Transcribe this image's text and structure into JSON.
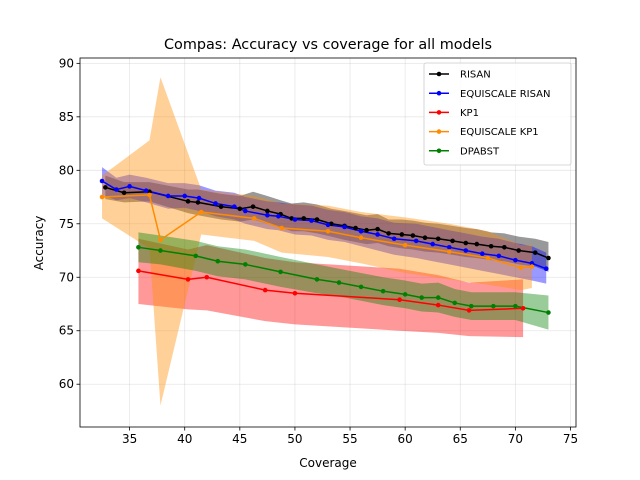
{
  "chart_data": {
    "type": "line",
    "title": "Compas: Accuracy vs coverage for all models",
    "xlabel": "Coverage",
    "ylabel": "Accuracy",
    "xlim": [
      30.5,
      75.5
    ],
    "ylim": [
      56.0,
      90.5
    ],
    "xticks": [
      35,
      40,
      45,
      50,
      55,
      60,
      65,
      70,
      75
    ],
    "yticks": [
      60,
      65,
      70,
      75,
      80,
      85,
      90
    ],
    "grid": true,
    "legend_position": "top-right",
    "series": [
      {
        "name": "RISAN",
        "color": "#000000",
        "x": [
          32.8,
          34.5,
          36.8,
          40.3,
          41.2,
          43.3,
          45.0,
          46.2,
          47.5,
          48.7,
          49.7,
          50.8,
          52.0,
          53.3,
          54.5,
          55.5,
          56.5,
          57.5,
          58.5,
          59.7,
          60.7,
          61.8,
          63.0,
          64.3,
          65.5,
          66.5,
          67.8,
          69.0,
          70.3,
          71.8,
          73.0
        ],
        "y": [
          78.4,
          77.9,
          78.0,
          77.1,
          77.0,
          76.6,
          76.4,
          76.6,
          76.2,
          75.9,
          75.5,
          75.5,
          75.4,
          75.0,
          74.8,
          74.6,
          74.4,
          74.5,
          74.1,
          74.0,
          73.9,
          73.7,
          73.6,
          73.4,
          73.2,
          73.1,
          72.9,
          72.8,
          72.5,
          72.3,
          71.8
        ],
        "lower": [
          77.3,
          77.0,
          77.1,
          76.0,
          75.8,
          75.4,
          75.2,
          75.4,
          75.0,
          74.7,
          74.3,
          74.3,
          74.1,
          73.8,
          73.5,
          73.3,
          73.1,
          73.2,
          72.9,
          72.7,
          72.6,
          72.4,
          72.3,
          72.1,
          71.9,
          71.8,
          71.6,
          71.5,
          71.2,
          71.0,
          70.5
        ],
        "upper": [
          79.5,
          78.9,
          78.9,
          78.2,
          78.2,
          77.8,
          77.6,
          78.0,
          77.6,
          77.2,
          76.9,
          77.0,
          76.8,
          76.4,
          76.2,
          76.0,
          75.8,
          75.9,
          75.4,
          75.4,
          75.3,
          75.1,
          75.0,
          74.8,
          74.6,
          74.5,
          74.2,
          74.1,
          73.8,
          73.6,
          73.3
        ]
      },
      {
        "name": "EQUISCALE RISAN",
        "color": "#0000ff",
        "x": [
          32.5,
          33.8,
          35.0,
          36.5,
          38.5,
          40.0,
          41.3,
          42.8,
          44.5,
          45.5,
          47.5,
          48.5,
          50.0,
          51.5,
          53.0,
          54.5,
          56.0,
          57.5,
          59.0,
          61.0,
          62.5,
          64.0,
          65.5,
          67.0,
          68.5,
          70.0,
          71.5,
          72.8
        ],
        "y": [
          79.0,
          78.2,
          78.5,
          78.1,
          77.6,
          77.6,
          77.4,
          76.9,
          76.6,
          76.2,
          75.8,
          75.7,
          75.4,
          75.3,
          74.9,
          74.7,
          74.3,
          74.0,
          73.6,
          73.4,
          73.1,
          72.8,
          72.5,
          72.2,
          72.0,
          71.6,
          71.3,
          70.8
        ],
        "lower": [
          77.7,
          77.2,
          77.4,
          77.0,
          76.4,
          76.5,
          76.2,
          75.7,
          75.4,
          75.0,
          74.5,
          74.4,
          74.0,
          73.9,
          73.5,
          73.3,
          72.9,
          72.5,
          72.1,
          71.8,
          71.5,
          71.2,
          70.9,
          70.6,
          70.3,
          70.0,
          69.7,
          69.4
        ],
        "upper": [
          80.3,
          79.3,
          79.6,
          79.3,
          78.8,
          78.8,
          78.6,
          78.1,
          77.9,
          77.5,
          77.1,
          77.0,
          76.8,
          76.7,
          76.3,
          76.1,
          75.7,
          75.5,
          75.1,
          75.0,
          74.7,
          74.4,
          74.1,
          73.8,
          73.6,
          73.2,
          72.9,
          72.3
        ]
      },
      {
        "name": "KP1",
        "color": "#ff0000",
        "x": [
          35.8,
          40.3,
          42.0,
          47.3,
          50.0,
          59.5,
          63.0,
          65.8,
          70.7
        ],
        "y": [
          70.6,
          69.8,
          70.0,
          68.8,
          68.5,
          67.9,
          67.4,
          66.9,
          67.1
        ],
        "lower": [
          67.5,
          67.0,
          66.9,
          65.9,
          65.6,
          65.0,
          64.8,
          64.5,
          64.4
        ],
        "upper": [
          73.6,
          72.6,
          73.0,
          71.8,
          71.4,
          70.8,
          70.2,
          69.5,
          69.8
        ]
      },
      {
        "name": "EQUISCALE KP1",
        "color": "#ff8c00",
        "x": [
          32.5,
          36.8,
          37.8,
          41.5,
          46.3,
          48.8,
          53.0,
          56.0,
          60.0,
          64.0,
          67.5,
          70.5,
          71.5
        ],
        "y": [
          77.5,
          77.7,
          73.5,
          76.1,
          75.5,
          74.6,
          74.3,
          73.7,
          73.0,
          72.4,
          71.8,
          70.9,
          71.0
        ],
        "lower": [
          75.5,
          72.7,
          58.0,
          74.0,
          73.4,
          72.3,
          71.9,
          71.3,
          70.4,
          69.8,
          69.3,
          68.8,
          69.0
        ],
        "upper": [
          79.5,
          82.8,
          88.7,
          78.2,
          77.6,
          76.9,
          76.7,
          76.1,
          75.6,
          75.0,
          74.3,
          73.0,
          73.0
        ]
      },
      {
        "name": "DPABST",
        "color": "#008000",
        "x": [
          35.8,
          37.8,
          41.0,
          43.0,
          45.5,
          48.7,
          52.0,
          54.0,
          56.0,
          58.0,
          60.0,
          61.5,
          63.0,
          64.5,
          66.0,
          68.0,
          70.0,
          73.0
        ],
        "y": [
          72.8,
          72.5,
          72.0,
          71.5,
          71.2,
          70.5,
          69.8,
          69.5,
          69.1,
          68.7,
          68.4,
          68.1,
          68.1,
          67.6,
          67.3,
          67.3,
          67.3,
          66.7
        ],
        "lower": [
          71.4,
          71.2,
          70.6,
          70.1,
          69.8,
          69.1,
          68.5,
          68.2,
          67.8,
          67.4,
          67.1,
          66.8,
          66.7,
          66.3,
          66.0,
          66.0,
          66.0,
          65.1
        ],
        "upper": [
          74.2,
          73.9,
          73.4,
          72.9,
          72.6,
          71.9,
          71.2,
          70.8,
          70.4,
          70.0,
          69.7,
          69.4,
          69.5,
          68.9,
          68.6,
          68.6,
          68.6,
          68.3
        ]
      }
    ]
  }
}
